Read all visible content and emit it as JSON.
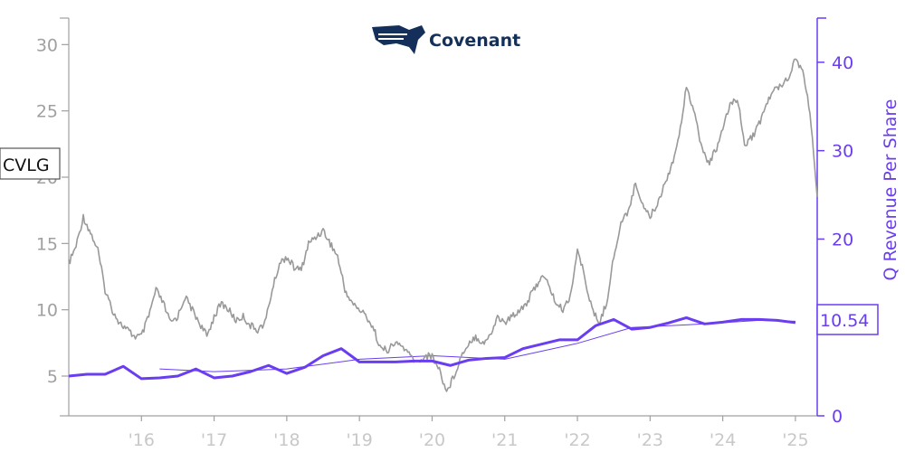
{
  "logo": {
    "text": "Covenant"
  },
  "chart_data": {
    "type": "line",
    "ticker": "CVLG",
    "last_value_label": "10.54",
    "x_tick_labels": [
      "'16",
      "'17",
      "'18",
      "'19",
      "'20",
      "'21",
      "'22",
      "'23",
      "'24",
      "'25"
    ],
    "x_tick_years": [
      2016,
      2017,
      2018,
      2019,
      2020,
      2021,
      2022,
      2023,
      2024,
      2025
    ],
    "xlim": [
      2015.0,
      2025.3
    ],
    "left_axis": {
      "ylim": [
        2,
        32
      ],
      "ticks": [
        5,
        10,
        15,
        20,
        25,
        30
      ]
    },
    "right_axis": {
      "label": "Q Revenue Per Share",
      "ylim": [
        0,
        45
      ],
      "ticks": [
        0,
        10,
        20,
        30,
        40
      ]
    },
    "colors": {
      "price": "#999999",
      "revenue": "#6a3df0",
      "trend": "#6a3df0",
      "logo": "#14305a"
    },
    "series": [
      {
        "role": "price",
        "axis": "left",
        "x": [
          2015.0,
          2015.1,
          2015.2,
          2015.3,
          2015.4,
          2015.5,
          2015.6,
          2015.7,
          2015.8,
          2015.9,
          2016.0,
          2016.1,
          2016.2,
          2016.3,
          2016.4,
          2016.5,
          2016.6,
          2016.7,
          2016.8,
          2016.9,
          2017.0,
          2017.1,
          2017.2,
          2017.3,
          2017.4,
          2017.5,
          2017.6,
          2017.7,
          2017.8,
          2017.9,
          2018.0,
          2018.1,
          2018.2,
          2018.3,
          2018.4,
          2018.5,
          2018.6,
          2018.7,
          2018.8,
          2018.9,
          2019.0,
          2019.1,
          2019.2,
          2019.3,
          2019.4,
          2019.5,
          2019.6,
          2019.7,
          2019.8,
          2019.9,
          2020.0,
          2020.1,
          2020.2,
          2020.3,
          2020.4,
          2020.5,
          2020.6,
          2020.7,
          2020.8,
          2020.9,
          2021.0,
          2021.1,
          2021.2,
          2021.3,
          2021.4,
          2021.5,
          2021.6,
          2021.7,
          2021.8,
          2021.9,
          2022.0,
          2022.1,
          2022.2,
          2022.3,
          2022.4,
          2022.5,
          2022.6,
          2022.7,
          2022.8,
          2022.9,
          2023.0,
          2023.1,
          2023.2,
          2023.3,
          2023.4,
          2023.5,
          2023.6,
          2023.7,
          2023.8,
          2023.9,
          2024.0,
          2024.1,
          2024.2,
          2024.3,
          2024.4,
          2024.5,
          2024.6,
          2024.7,
          2024.8,
          2024.9,
          2025.0,
          2025.1,
          2025.2,
          2025.3
        ],
        "values": [
          13.5,
          14.8,
          17.0,
          15.8,
          14.5,
          11.5,
          10.0,
          9.0,
          8.5,
          8.0,
          8.0,
          9.5,
          11.5,
          10.5,
          9.0,
          9.5,
          11.0,
          10.0,
          9.0,
          8.0,
          9.5,
          10.5,
          10.0,
          9.2,
          9.5,
          8.8,
          8.5,
          9.0,
          11.5,
          13.5,
          14.0,
          13.2,
          13.0,
          15.0,
          15.5,
          16.0,
          15.0,
          14.0,
          11.5,
          10.5,
          10.0,
          9.5,
          8.5,
          7.0,
          7.0,
          7.5,
          7.2,
          6.5,
          6.0,
          6.5,
          6.5,
          5.5,
          3.8,
          5.0,
          6.5,
          7.5,
          8.0,
          7.5,
          8.0,
          9.5,
          9.0,
          9.5,
          10.0,
          10.5,
          11.5,
          12.5,
          12.0,
          10.5,
          10.0,
          11.0,
          14.5,
          12.5,
          10.0,
          9.0,
          10.5,
          14.0,
          16.5,
          17.5,
          19.5,
          18.0,
          17.0,
          18.0,
          19.5,
          21.0,
          23.0,
          27.0,
          25.0,
          22.5,
          21.0,
          22.0,
          23.5,
          25.5,
          26.0,
          22.5,
          23.0,
          24.0,
          25.5,
          26.5,
          27.0,
          27.5,
          29.0,
          28.0,
          25.0,
          18.5
        ]
      },
      {
        "role": "revenue",
        "axis": "right",
        "x": [
          2015.0,
          2015.25,
          2015.5,
          2015.75,
          2016.0,
          2016.25,
          2016.5,
          2016.75,
          2017.0,
          2017.25,
          2017.5,
          2017.75,
          2018.0,
          2018.25,
          2018.5,
          2018.75,
          2019.0,
          2019.25,
          2019.5,
          2019.75,
          2020.0,
          2020.25,
          2020.5,
          2020.75,
          2021.0,
          2021.25,
          2021.5,
          2021.75,
          2022.0,
          2022.25,
          2022.5,
          2022.75,
          2023.0,
          2023.25,
          2023.5,
          2023.75,
          2024.0,
          2024.25,
          2024.5,
          2024.75,
          2025.0
        ],
        "values": [
          4.5,
          4.7,
          4.7,
          5.6,
          4.2,
          4.3,
          4.5,
          5.3,
          4.3,
          4.5,
          5.0,
          5.7,
          4.8,
          5.5,
          6.8,
          7.6,
          6.1,
          6.1,
          6.1,
          6.2,
          6.2,
          5.7,
          6.3,
          6.5,
          6.6,
          7.6,
          8.1,
          8.6,
          8.6,
          10.2,
          10.9,
          9.8,
          10.0,
          10.5,
          11.1,
          10.4,
          10.6,
          10.9,
          10.9,
          10.8,
          10.54
        ]
      },
      {
        "role": "revenue-trend",
        "axis": "right",
        "x": [
          2016.25,
          2017.0,
          2018.0,
          2019.0,
          2020.0,
          2021.0,
          2022.0,
          2022.75,
          2023.75,
          2024.5,
          2025.0
        ],
        "values": [
          5.3,
          5.0,
          5.3,
          6.4,
          6.8,
          6.4,
          8.2,
          10.0,
          10.4,
          10.8,
          10.7
        ]
      }
    ]
  }
}
